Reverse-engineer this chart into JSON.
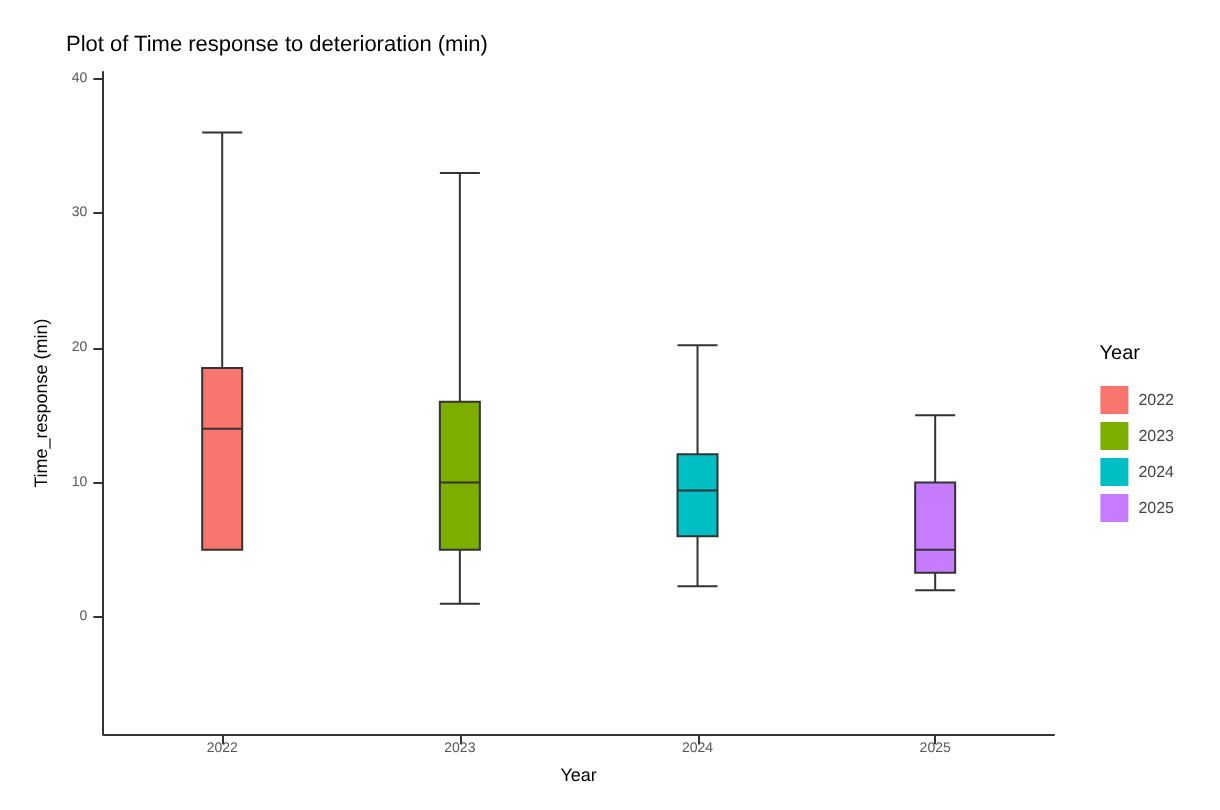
{
  "chart_data": {
    "type": "box",
    "title": "Plot of Time response to deterioration (min)",
    "xlabel": "Year",
    "ylabel": "Time_response (min)",
    "legend_title": "Year",
    "legend": "right",
    "grid": false,
    "categories": [
      "2022",
      "2023",
      "2024",
      "2025"
    ],
    "series": [
      {
        "name": "2022",
        "color": "#f8766d",
        "boxes": [
          {
            "low": 5,
            "q1": 5,
            "median": 14,
            "q3": 18.5,
            "high": 36
          },
          null,
          null,
          null
        ]
      },
      {
        "name": "2023",
        "color": "#7cae00",
        "boxes": [
          null,
          {
            "low": 1,
            "q1": 5,
            "median": 10,
            "q3": 16,
            "high": 33
          },
          null,
          null
        ]
      },
      {
        "name": "2024",
        "color": "#00bfc4",
        "boxes": [
          null,
          null,
          {
            "low": 2.3,
            "q1": 6,
            "median": 9.4,
            "q3": 12.1,
            "high": 20.2
          },
          null
        ]
      },
      {
        "name": "2025",
        "color": "#c77cff",
        "boxes": [
          null,
          null,
          null,
          {
            "low": 2,
            "q1": 3.3,
            "median": 5,
            "q3": 10,
            "high": 15
          }
        ]
      }
    ],
    "ylim": [
      -8.7,
      40.5
    ],
    "yticks": [
      0,
      10,
      20,
      30,
      40
    ]
  }
}
